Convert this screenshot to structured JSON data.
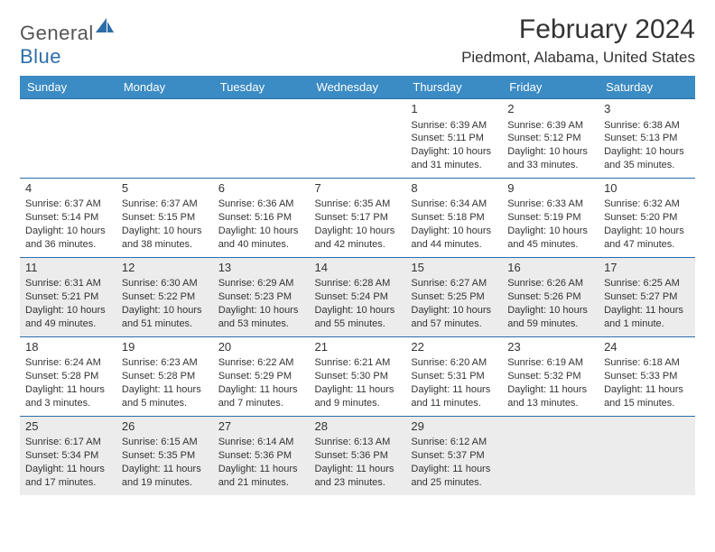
{
  "brand": {
    "general": "General",
    "blue": "Blue"
  },
  "title": "February 2024",
  "location": "Piedmont, Alabama, United States",
  "style": {
    "header_bg": "#3b8bc4",
    "row_divider": "#2d6da8",
    "alt_row_bg": "#ececec",
    "title_fontsize": 30,
    "location_fontsize": 17,
    "header_fontsize": 13,
    "cell_fontsize": 11,
    "daynum_fontsize": 13
  },
  "weekdays": [
    "Sunday",
    "Monday",
    "Tuesday",
    "Wednesday",
    "Thursday",
    "Friday",
    "Saturday"
  ],
  "weeks": [
    [
      null,
      null,
      null,
      null,
      {
        "n": "1",
        "sr": "Sunrise: 6:39 AM",
        "ss": "Sunset: 5:11 PM",
        "dl1": "Daylight: 10 hours",
        "dl2": "and 31 minutes."
      },
      {
        "n": "2",
        "sr": "Sunrise: 6:39 AM",
        "ss": "Sunset: 5:12 PM",
        "dl1": "Daylight: 10 hours",
        "dl2": "and 33 minutes."
      },
      {
        "n": "3",
        "sr": "Sunrise: 6:38 AM",
        "ss": "Sunset: 5:13 PM",
        "dl1": "Daylight: 10 hours",
        "dl2": "and 35 minutes."
      }
    ],
    [
      {
        "n": "4",
        "sr": "Sunrise: 6:37 AM",
        "ss": "Sunset: 5:14 PM",
        "dl1": "Daylight: 10 hours",
        "dl2": "and 36 minutes."
      },
      {
        "n": "5",
        "sr": "Sunrise: 6:37 AM",
        "ss": "Sunset: 5:15 PM",
        "dl1": "Daylight: 10 hours",
        "dl2": "and 38 minutes."
      },
      {
        "n": "6",
        "sr": "Sunrise: 6:36 AM",
        "ss": "Sunset: 5:16 PM",
        "dl1": "Daylight: 10 hours",
        "dl2": "and 40 minutes."
      },
      {
        "n": "7",
        "sr": "Sunrise: 6:35 AM",
        "ss": "Sunset: 5:17 PM",
        "dl1": "Daylight: 10 hours",
        "dl2": "and 42 minutes."
      },
      {
        "n": "8",
        "sr": "Sunrise: 6:34 AM",
        "ss": "Sunset: 5:18 PM",
        "dl1": "Daylight: 10 hours",
        "dl2": "and 44 minutes."
      },
      {
        "n": "9",
        "sr": "Sunrise: 6:33 AM",
        "ss": "Sunset: 5:19 PM",
        "dl1": "Daylight: 10 hours",
        "dl2": "and 45 minutes."
      },
      {
        "n": "10",
        "sr": "Sunrise: 6:32 AM",
        "ss": "Sunset: 5:20 PM",
        "dl1": "Daylight: 10 hours",
        "dl2": "and 47 minutes."
      }
    ],
    [
      {
        "n": "11",
        "sr": "Sunrise: 6:31 AM",
        "ss": "Sunset: 5:21 PM",
        "dl1": "Daylight: 10 hours",
        "dl2": "and 49 minutes."
      },
      {
        "n": "12",
        "sr": "Sunrise: 6:30 AM",
        "ss": "Sunset: 5:22 PM",
        "dl1": "Daylight: 10 hours",
        "dl2": "and 51 minutes."
      },
      {
        "n": "13",
        "sr": "Sunrise: 6:29 AM",
        "ss": "Sunset: 5:23 PM",
        "dl1": "Daylight: 10 hours",
        "dl2": "and 53 minutes."
      },
      {
        "n": "14",
        "sr": "Sunrise: 6:28 AM",
        "ss": "Sunset: 5:24 PM",
        "dl1": "Daylight: 10 hours",
        "dl2": "and 55 minutes."
      },
      {
        "n": "15",
        "sr": "Sunrise: 6:27 AM",
        "ss": "Sunset: 5:25 PM",
        "dl1": "Daylight: 10 hours",
        "dl2": "and 57 minutes."
      },
      {
        "n": "16",
        "sr": "Sunrise: 6:26 AM",
        "ss": "Sunset: 5:26 PM",
        "dl1": "Daylight: 10 hours",
        "dl2": "and 59 minutes."
      },
      {
        "n": "17",
        "sr": "Sunrise: 6:25 AM",
        "ss": "Sunset: 5:27 PM",
        "dl1": "Daylight: 11 hours",
        "dl2": "and 1 minute."
      }
    ],
    [
      {
        "n": "18",
        "sr": "Sunrise: 6:24 AM",
        "ss": "Sunset: 5:28 PM",
        "dl1": "Daylight: 11 hours",
        "dl2": "and 3 minutes."
      },
      {
        "n": "19",
        "sr": "Sunrise: 6:23 AM",
        "ss": "Sunset: 5:28 PM",
        "dl1": "Daylight: 11 hours",
        "dl2": "and 5 minutes."
      },
      {
        "n": "20",
        "sr": "Sunrise: 6:22 AM",
        "ss": "Sunset: 5:29 PM",
        "dl1": "Daylight: 11 hours",
        "dl2": "and 7 minutes."
      },
      {
        "n": "21",
        "sr": "Sunrise: 6:21 AM",
        "ss": "Sunset: 5:30 PM",
        "dl1": "Daylight: 11 hours",
        "dl2": "and 9 minutes."
      },
      {
        "n": "22",
        "sr": "Sunrise: 6:20 AM",
        "ss": "Sunset: 5:31 PM",
        "dl1": "Daylight: 11 hours",
        "dl2": "and 11 minutes."
      },
      {
        "n": "23",
        "sr": "Sunrise: 6:19 AM",
        "ss": "Sunset: 5:32 PM",
        "dl1": "Daylight: 11 hours",
        "dl2": "and 13 minutes."
      },
      {
        "n": "24",
        "sr": "Sunrise: 6:18 AM",
        "ss": "Sunset: 5:33 PM",
        "dl1": "Daylight: 11 hours",
        "dl2": "and 15 minutes."
      }
    ],
    [
      {
        "n": "25",
        "sr": "Sunrise: 6:17 AM",
        "ss": "Sunset: 5:34 PM",
        "dl1": "Daylight: 11 hours",
        "dl2": "and 17 minutes."
      },
      {
        "n": "26",
        "sr": "Sunrise: 6:15 AM",
        "ss": "Sunset: 5:35 PM",
        "dl1": "Daylight: 11 hours",
        "dl2": "and 19 minutes."
      },
      {
        "n": "27",
        "sr": "Sunrise: 6:14 AM",
        "ss": "Sunset: 5:36 PM",
        "dl1": "Daylight: 11 hours",
        "dl2": "and 21 minutes."
      },
      {
        "n": "28",
        "sr": "Sunrise: 6:13 AM",
        "ss": "Sunset: 5:36 PM",
        "dl1": "Daylight: 11 hours",
        "dl2": "and 23 minutes."
      },
      {
        "n": "29",
        "sr": "Sunrise: 6:12 AM",
        "ss": "Sunset: 5:37 PM",
        "dl1": "Daylight: 11 hours",
        "dl2": "and 25 minutes."
      },
      null,
      null
    ]
  ]
}
